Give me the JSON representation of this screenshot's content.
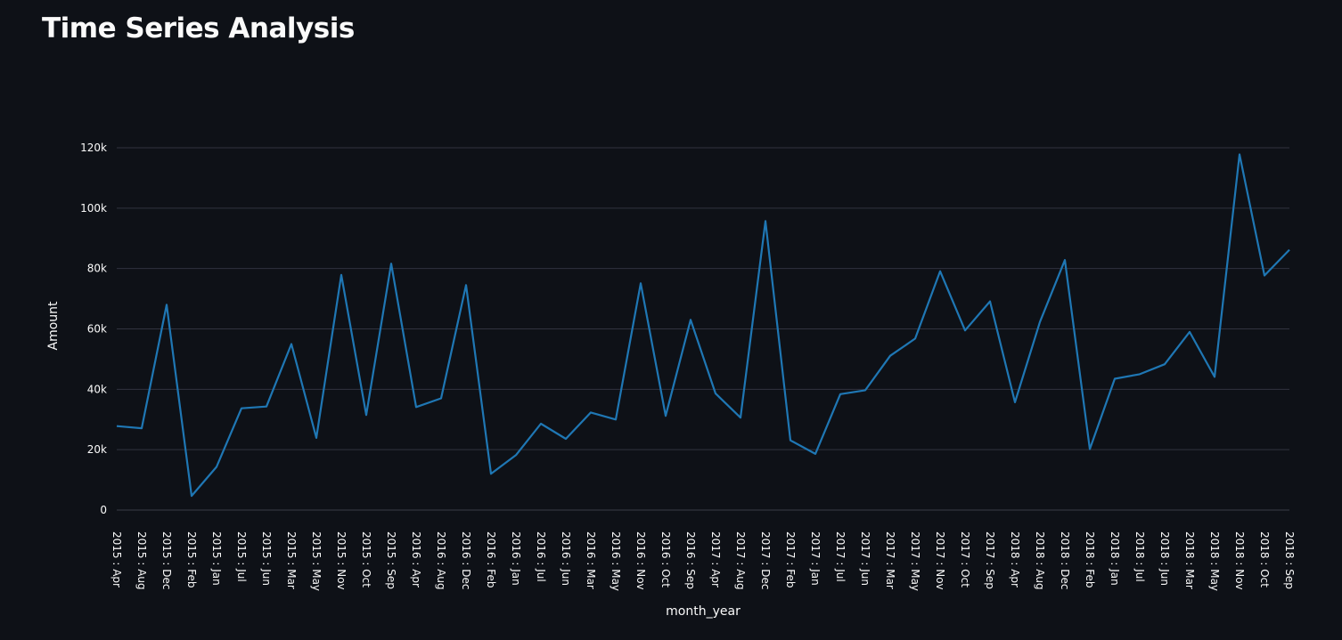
{
  "page": {
    "title": "Time Series Analysis"
  },
  "chart_data": {
    "type": "line",
    "xlabel": "month_year",
    "ylabel": "Amount",
    "ylim": [
      0,
      120000
    ],
    "yticks": [
      0,
      20000,
      40000,
      60000,
      80000,
      100000,
      120000
    ],
    "ytick_labels": [
      "0",
      "20k",
      "40k",
      "60k",
      "80k",
      "100k",
      "120k"
    ],
    "grid": true,
    "line_color": "#1f77b4",
    "categories": [
      "2015 : Apr",
      "2015 : Aug",
      "2015 : Dec",
      "2015 : Feb",
      "2015 : Jan",
      "2015 : Jul",
      "2015 : Jun",
      "2015 : Mar",
      "2015 : May",
      "2015 : Nov",
      "2015 : Oct",
      "2015 : Sep",
      "2016 : Apr",
      "2016 : Aug",
      "2016 : Dec",
      "2016 : Feb",
      "2016 : Jan",
      "2016 : Jul",
      "2016 : Jun",
      "2016 : Mar",
      "2016 : May",
      "2016 : Nov",
      "2016 : Oct",
      "2016 : Sep",
      "2017 : Apr",
      "2017 : Aug",
      "2017 : Dec",
      "2017 : Feb",
      "2017 : Jan",
      "2017 : Jul",
      "2017 : Jun",
      "2017 : Mar",
      "2017 : May",
      "2017 : Nov",
      "2017 : Oct",
      "2017 : Sep",
      "2018 : Apr",
      "2018 : Aug",
      "2018 : Dec",
      "2018 : Feb",
      "2018 : Jan",
      "2018 : Jul",
      "2018 : Jun",
      "2018 : Mar",
      "2018 : May",
      "2018 : Nov",
      "2018 : Oct",
      "2018 : Sep"
    ],
    "values": [
      27800,
      27100,
      68000,
      4700,
      14300,
      33700,
      34300,
      55000,
      23900,
      77900,
      31500,
      81600,
      34100,
      37000,
      74500,
      12000,
      18200,
      28600,
      23600,
      32300,
      30000,
      75100,
      31200,
      63000,
      38600,
      30600,
      95700,
      23100,
      18600,
      38400,
      39700,
      51100,
      56800,
      79100,
      59500,
      69100,
      35700,
      62300,
      82800,
      20200,
      43500,
      45000,
      48300,
      59000,
      44100,
      117800,
      77700,
      86200
    ]
  }
}
